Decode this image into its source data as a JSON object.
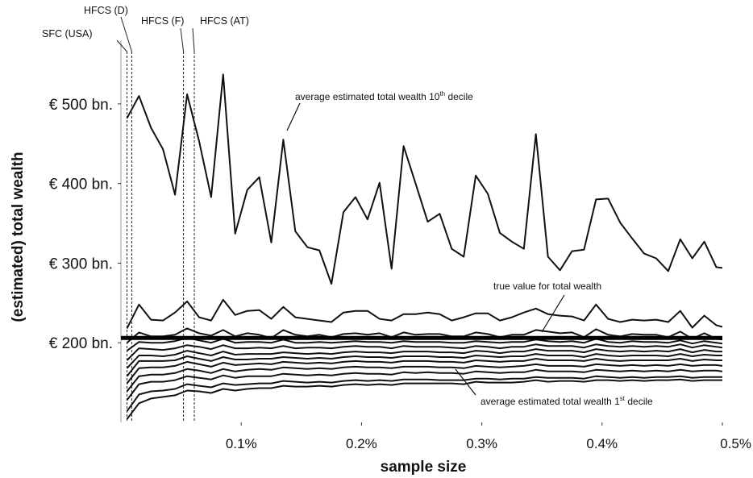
{
  "chart_data": {
    "type": "line",
    "xlabel": "sample size",
    "ylabel": "(estimated) total wealth",
    "xlim": [
      0,
      0.5
    ],
    "ylim": [
      100,
      590
    ],
    "x_ticks": [
      {
        "value": 0.1,
        "label": "0.1%"
      },
      {
        "value": 0.2,
        "label": "0.2%"
      },
      {
        "value": 0.3,
        "label": "0.3%"
      },
      {
        "value": 0.4,
        "label": "0.4%"
      },
      {
        "value": 0.5,
        "label": "0.5%"
      }
    ],
    "y_ticks": [
      {
        "value": 200,
        "label": "€ 200 bn."
      },
      {
        "value": 300,
        "label": "€ 300 bn."
      },
      {
        "value": 400,
        "label": "€ 400 bn."
      },
      {
        "value": 500,
        "label": "€ 500 bn."
      }
    ],
    "x": [
      0.005,
      0.015,
      0.025,
      0.035,
      0.045,
      0.055,
      0.065,
      0.075,
      0.085,
      0.095,
      0.105,
      0.115,
      0.125,
      0.135,
      0.145,
      0.155,
      0.165,
      0.175,
      0.185,
      0.195,
      0.205,
      0.215,
      0.225,
      0.235,
      0.245,
      0.255,
      0.265,
      0.275,
      0.285,
      0.295,
      0.305,
      0.315,
      0.325,
      0.335,
      0.345,
      0.355,
      0.365,
      0.375,
      0.385,
      0.395,
      0.405,
      0.415,
      0.425,
      0.435,
      0.445,
      0.455,
      0.465,
      0.475,
      0.485,
      0.495,
      0.5
    ],
    "true_value": 206,
    "series": [
      {
        "values": [
          482,
          510,
          470,
          443,
          386,
          512,
          453,
          383,
          537,
          337,
          392,
          408,
          326,
          455,
          340,
          320,
          316,
          274,
          364,
          383,
          355,
          401,
          293,
          447,
          400,
          352,
          362,
          318,
          308,
          410,
          387,
          338,
          327,
          318,
          462,
          308,
          291,
          315,
          317,
          380,
          381,
          351,
          331,
          312,
          306,
          290,
          330,
          306,
          327,
          295,
          294
        ]
      },
      {
        "values": [
          218,
          248,
          229,
          228,
          238,
          252,
          232,
          228,
          254,
          235,
          240,
          241,
          230,
          245,
          232,
          230,
          228,
          226,
          238,
          240,
          240,
          230,
          228,
          236,
          236,
          238,
          236,
          228,
          232,
          237,
          237,
          228,
          232,
          238,
          243,
          236,
          234,
          233,
          228,
          248,
          230,
          226,
          229,
          228,
          229,
          226,
          240,
          219,
          234,
          222,
          220
        ]
      },
      {
        "values": [
          200,
          213,
          208,
          208,
          210,
          218,
          212,
          209,
          216,
          208,
          212,
          210,
          206,
          216,
          210,
          208,
          210,
          207,
          211,
          212,
          210,
          212,
          207,
          213,
          210,
          211,
          211,
          208,
          208,
          213,
          211,
          207,
          210,
          210,
          216,
          214,
          212,
          213,
          207,
          217,
          210,
          208,
          211,
          210,
          210,
          207,
          214,
          205,
          212,
          205,
          204
        ]
      },
      {
        "values": [
          190,
          201,
          200,
          200,
          202,
          206,
          203,
          200,
          205,
          200,
          201,
          201,
          200,
          204,
          200,
          200,
          201,
          200,
          201,
          202,
          201,
          201,
          200,
          202,
          201,
          201,
          201,
          200,
          200,
          202,
          201,
          200,
          201,
          201,
          204,
          202,
          201,
          202,
          200,
          205,
          201,
          200,
          202,
          201,
          201,
          200,
          203,
          199,
          202,
          200,
          199
        ]
      },
      {
        "values": [
          178,
          193,
          192,
          191,
          193,
          197,
          195,
          192,
          197,
          193,
          193,
          194,
          193,
          196,
          193,
          194,
          194,
          193,
          195,
          196,
          195,
          195,
          193,
          196,
          195,
          195,
          195,
          194,
          193,
          196,
          195,
          193,
          195,
          195,
          198,
          196,
          196,
          196,
          194,
          198,
          196,
          195,
          196,
          195,
          196,
          195,
          198,
          194,
          197,
          195,
          194
        ]
      },
      {
        "values": [
          168,
          184,
          184,
          183,
          185,
          190,
          187,
          184,
          189,
          185,
          186,
          186,
          186,
          188,
          187,
          186,
          187,
          186,
          188,
          189,
          188,
          188,
          187,
          189,
          189,
          189,
          188,
          188,
          187,
          190,
          189,
          187,
          189,
          189,
          192,
          190,
          190,
          190,
          188,
          192,
          190,
          189,
          190,
          189,
          190,
          189,
          192,
          188,
          191,
          189,
          189
        ]
      },
      {
        "values": [
          158,
          177,
          177,
          177,
          178,
          183,
          180,
          177,
          182,
          179,
          179,
          180,
          180,
          182,
          181,
          180,
          181,
          180,
          182,
          183,
          182,
          182,
          181,
          183,
          183,
          183,
          182,
          182,
          181,
          184,
          183,
          182,
          183,
          183,
          186,
          184,
          184,
          184,
          182,
          186,
          184,
          183,
          184,
          184,
          184,
          183,
          186,
          183,
          185,
          184,
          184
        ]
      },
      {
        "values": [
          149,
          168,
          169,
          169,
          171,
          176,
          173,
          170,
          175,
          172,
          173,
          174,
          173,
          176,
          175,
          174,
          175,
          174,
          176,
          177,
          176,
          176,
          175,
          177,
          177,
          177,
          176,
          176,
          175,
          178,
          177,
          176,
          177,
          177,
          180,
          178,
          178,
          178,
          177,
          180,
          178,
          177,
          178,
          178,
          178,
          178,
          180,
          177,
          179,
          178,
          178
        ]
      },
      {
        "values": [
          139,
          158,
          160,
          160,
          162,
          167,
          165,
          162,
          167,
          164,
          166,
          167,
          166,
          169,
          168,
          167,
          168,
          167,
          169,
          170,
          169,
          169,
          168,
          170,
          170,
          170,
          169,
          169,
          168,
          171,
          170,
          169,
          170,
          171,
          173,
          171,
          171,
          171,
          170,
          173,
          172,
          171,
          172,
          171,
          172,
          171,
          173,
          171,
          172,
          172,
          171
        ]
      },
      {
        "values": [
          128,
          148,
          151,
          151,
          153,
          158,
          156,
          154,
          159,
          156,
          158,
          158,
          158,
          161,
          160,
          159,
          160,
          159,
          161,
          162,
          161,
          161,
          160,
          163,
          162,
          163,
          162,
          162,
          161,
          164,
          163,
          162,
          163,
          163,
          166,
          164,
          164,
          164,
          163,
          166,
          165,
          164,
          165,
          164,
          165,
          164,
          166,
          164,
          165,
          165,
          164
        ]
      },
      {
        "values": [
          114,
          135,
          139,
          140,
          142,
          148,
          146,
          144,
          149,
          147,
          148,
          149,
          149,
          152,
          151,
          150,
          151,
          150,
          152,
          153,
          152,
          153,
          152,
          154,
          154,
          154,
          153,
          153,
          153,
          155,
          155,
          154,
          155,
          155,
          157,
          156,
          156,
          156,
          155,
          158,
          157,
          156,
          157,
          156,
          157,
          157,
          158,
          156,
          157,
          157,
          157
        ]
      },
      {
        "values": [
          104,
          124,
          130,
          132,
          134,
          140,
          139,
          137,
          142,
          140,
          142,
          143,
          143,
          146,
          145,
          145,
          146,
          145,
          147,
          148,
          147,
          148,
          147,
          149,
          149,
          149,
          149,
          149,
          148,
          151,
          150,
          150,
          150,
          151,
          153,
          151,
          152,
          152,
          151,
          153,
          153,
          152,
          153,
          152,
          153,
          153,
          154,
          152,
          153,
          153,
          153
        ]
      }
    ],
    "annotations": [
      {
        "text": "average estimated total wealth 10",
        "sup": "th",
        "tail": " decile"
      },
      {
        "text": "true value for total wealth",
        "sup": "",
        "tail": ""
      },
      {
        "text": "average estimated total wealth 1",
        "sup": "st",
        "tail": " decile"
      }
    ],
    "reference_lines": [
      {
        "label": "SFC (USA)",
        "x": 0.005
      },
      {
        "label": "HFCS (D)",
        "x": 0.009
      },
      {
        "label": "HFCS (F)",
        "x": 0.052
      },
      {
        "label": "HFCS (AT)",
        "x": 0.061
      }
    ]
  }
}
